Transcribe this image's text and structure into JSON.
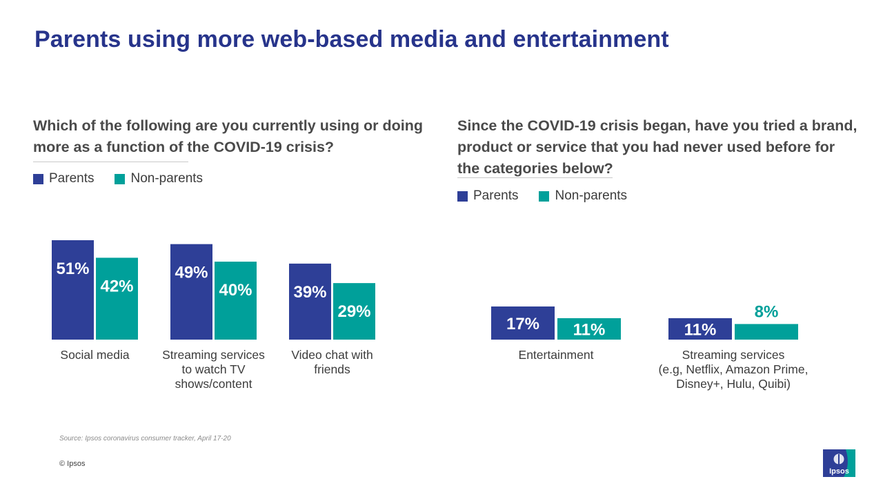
{
  "title": "Parents using more web-based media and entertainment",
  "left": {
    "question": "Which of the following are you currently using or doing more as a function of the COVID-19 crisis?",
    "legend": [
      "Parents",
      "Non-parents"
    ]
  },
  "right": {
    "question": "Since the COVID-19 crisis began, have you tried a brand, product or service that you had never used before for the categories below?",
    "legend": [
      "Parents",
      "Non-parents"
    ]
  },
  "colors": {
    "parents": "#2e3f97",
    "non_parents": "#00a09a",
    "title": "#27348b"
  },
  "chart_data": [
    {
      "type": "bar",
      "title": "",
      "categories": [
        "Social media",
        "Streaming services to watch TV shows/content",
        "Video chat with friends"
      ],
      "category_lines": [
        [
          "Social media"
        ],
        [
          "Streaming services",
          "to watch TV",
          "shows/content"
        ],
        [
          "Video chat with",
          "friends"
        ]
      ],
      "series": [
        {
          "name": "Parents",
          "values": [
            51,
            49,
            39
          ],
          "labels": [
            "51%",
            "49%",
            "39%"
          ]
        },
        {
          "name": "Non-parents",
          "values": [
            42,
            40,
            29
          ],
          "labels": [
            "42%",
            "40%",
            "29%"
          ]
        }
      ],
      "xlabel": "",
      "ylabel": "",
      "ylim": [
        0,
        51
      ],
      "grid": false,
      "legend": "top-left"
    },
    {
      "type": "bar",
      "title": "",
      "categories": [
        "Entertainment",
        "Streaming services (e.g, Netflix, Amazon Prime, Disney+, Hulu, Quibi)"
      ],
      "category_lines": [
        [
          "Entertainment"
        ],
        [
          "Streaming services",
          "(e.g, Netflix, Amazon Prime,",
          "Disney+, Hulu, Quibi)"
        ]
      ],
      "series": [
        {
          "name": "Parents",
          "values": [
            17,
            11
          ],
          "labels": [
            "17%",
            "11%"
          ]
        },
        {
          "name": "Non-parents",
          "values": [
            11,
            8
          ],
          "labels": [
            "11%",
            "8%"
          ]
        }
      ],
      "xlabel": "",
      "ylabel": "",
      "ylim": [
        0,
        17
      ],
      "grid": false,
      "legend": "top-left"
    }
  ],
  "source": "Source: Ipsos coronavirus consumer tracker, April 17-20",
  "copyright": "© Ipsos",
  "logo_text": "Ipsos"
}
